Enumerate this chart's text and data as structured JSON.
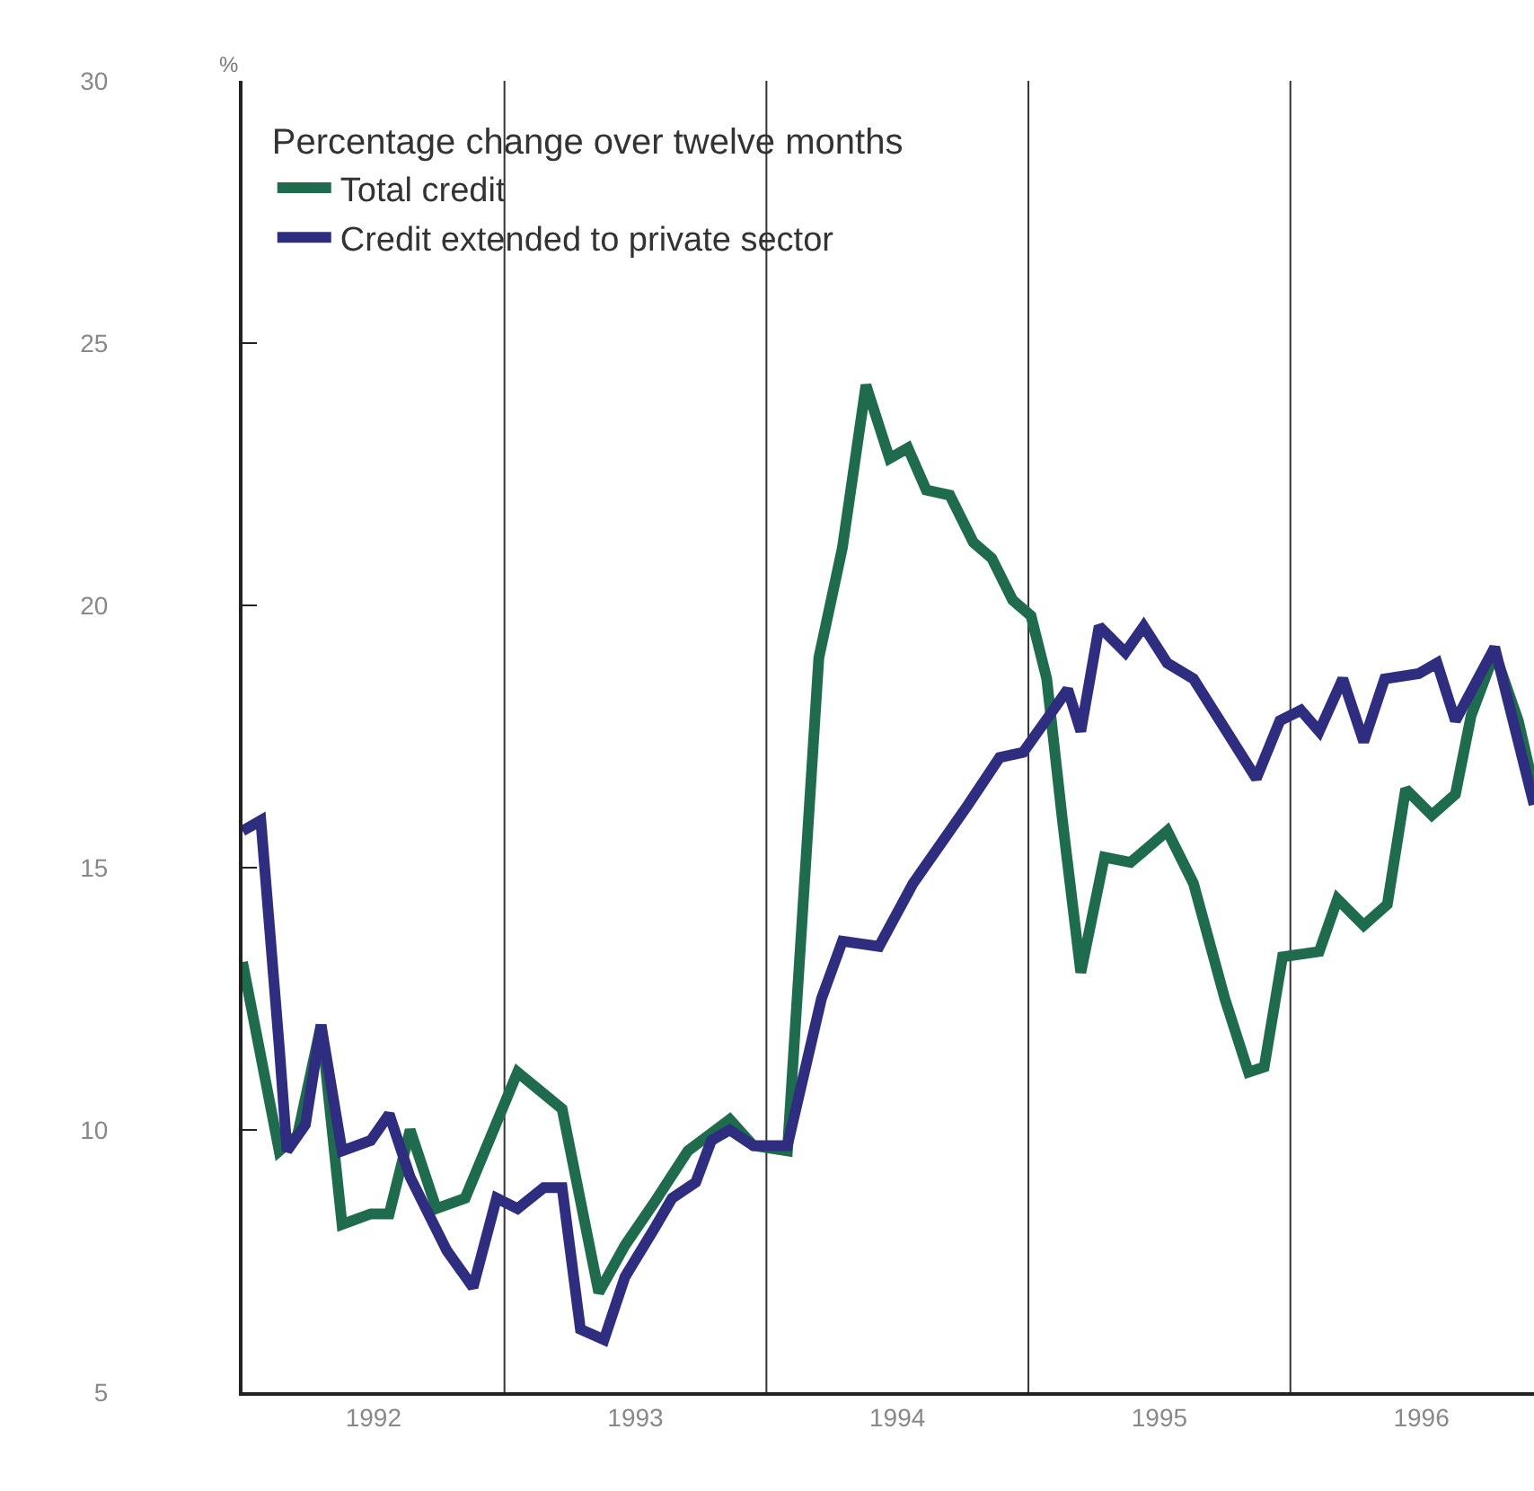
{
  "chart_data": {
    "type": "line",
    "ylabel": "%",
    "legend_title": "Percentage change over twelve months",
    "legend": "top left",
    "grid": false,
    "marker": "none",
    "line_style": "solid",
    "xlim": [
      1992,
      1996.93
    ],
    "xticks": [
      {
        "value": 1992.5,
        "label": "1992"
      },
      {
        "value": 1993.5,
        "label": "1993"
      },
      {
        "value": 1994.5,
        "label": "1994"
      },
      {
        "value": 1995.5,
        "label": "1995"
      },
      {
        "value": 1996.5,
        "label": "1996"
      }
    ],
    "ylim": [
      5,
      30
    ],
    "yticks": [
      5,
      10,
      15,
      20,
      25,
      30
    ],
    "ref_lines": [
      {
        "axis": "x",
        "value": 1993,
        "color": "#333333"
      },
      {
        "axis": "x",
        "value": 1994,
        "color": "#333333"
      },
      {
        "axis": "x",
        "value": 1995,
        "color": "#333333"
      },
      {
        "axis": "x",
        "value": 1996,
        "color": "#333333"
      }
    ],
    "series": [
      {
        "name": "Total credit",
        "color": "#1f6b4e",
        "x": [
          1992.0,
          1992.14,
          1992.21,
          1992.3,
          1992.38,
          1992.49,
          1992.56,
          1992.64,
          1992.74,
          1992.85,
          1993.05,
          1993.22,
          1993.36,
          1993.46,
          1993.57,
          1993.7,
          1993.86,
          1993.95,
          1994.08,
          1994.2,
          1994.29,
          1994.38,
          1994.47,
          1994.54,
          1994.61,
          1994.7,
          1994.79,
          1994.86,
          1994.94,
          1995.01,
          1995.07,
          1995.13,
          1995.2,
          1995.29,
          1995.39,
          1995.53,
          1995.63,
          1995.75,
          1995.84,
          1995.9,
          1995.97,
          1996.11,
          1996.18,
          1996.28,
          1996.37,
          1996.44,
          1996.54,
          1996.63,
          1996.69,
          1996.78,
          1996.87,
          1996.93
        ],
        "values": [
          13.2,
          9.6,
          9.9,
          12.0,
          8.2,
          8.4,
          8.4,
          10.0,
          8.5,
          8.7,
          11.1,
          10.4,
          6.9,
          7.8,
          8.6,
          9.6,
          10.2,
          9.7,
          9.6,
          19.0,
          21.1,
          24.2,
          22.8,
          23.0,
          22.2,
          22.1,
          21.2,
          20.9,
          20.1,
          19.8,
          18.6,
          15.9,
          13.0,
          15.2,
          15.1,
          15.7,
          14.7,
          12.5,
          11.1,
          11.2,
          13.3,
          13.4,
          14.4,
          13.9,
          14.3,
          16.5,
          16.0,
          16.4,
          17.9,
          19.1,
          17.8,
          16.5
        ]
      },
      {
        "name": "Credit extended to private sector",
        "color": "#2e2d80",
        "x": [
          1992.0,
          1992.07,
          1992.14,
          1992.17,
          1992.24,
          1992.3,
          1992.38,
          1992.49,
          1992.56,
          1992.64,
          1992.78,
          1992.88,
          1992.97,
          1993.05,
          1993.15,
          1993.22,
          1993.29,
          1993.38,
          1993.46,
          1993.57,
          1993.64,
          1993.73,
          1993.79,
          1993.86,
          1993.95,
          1994.08,
          1994.21,
          1994.29,
          1994.43,
          1994.56,
          1994.77,
          1994.89,
          1994.98,
          1995.08,
          1995.15,
          1995.2,
          1995.27,
          1995.37,
          1995.44,
          1995.53,
          1995.63,
          1995.87,
          1995.96,
          1996.04,
          1996.11,
          1996.2,
          1996.28,
          1996.36,
          1996.49,
          1996.56,
          1996.63,
          1996.78,
          1996.93
        ],
        "values": [
          15.7,
          15.9,
          11.6,
          9.6,
          10.1,
          12.0,
          9.6,
          9.8,
          10.3,
          9.1,
          7.7,
          7.0,
          8.7,
          8.5,
          8.9,
          8.9,
          6.2,
          6.0,
          7.2,
          8.1,
          8.7,
          9.0,
          9.8,
          10.0,
          9.7,
          9.7,
          12.5,
          13.6,
          13.5,
          14.7,
          16.2,
          17.1,
          17.2,
          17.9,
          18.4,
          17.6,
          19.6,
          19.1,
          19.6,
          18.9,
          18.6,
          16.7,
          17.8,
          18.0,
          17.6,
          18.6,
          17.4,
          18.6,
          18.7,
          18.9,
          17.8,
          19.2,
          16.2
        ]
      }
    ]
  }
}
